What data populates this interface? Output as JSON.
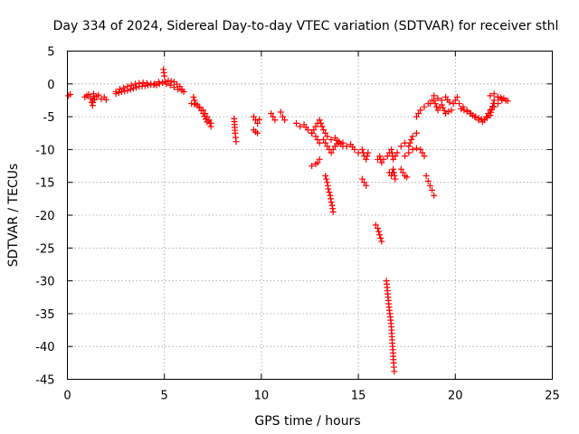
{
  "chart_data": {
    "type": "scatter",
    "title": "Day 334 of 2024, Sidereal Day-to-day VTEC variation (SDTVAR) for receiver sthl",
    "xlabel": "GPS time / hours",
    "ylabel": "SDTVAR / TECUs",
    "xlim": [
      0,
      25
    ],
    "ylim": [
      -45,
      5
    ],
    "x_ticks": [
      0,
      5,
      10,
      15,
      20,
      25
    ],
    "y_ticks": [
      5,
      0,
      -5,
      -10,
      -15,
      -20,
      -25,
      -30,
      -35,
      -40,
      -45
    ],
    "grid": true,
    "marker": "plus",
    "color": "#ff0000",
    "series": [
      {
        "name": "sthl",
        "segments": [
          {
            "x": [
              0.05,
              0.15
            ],
            "y": [
              -1.8,
              -1.6
            ]
          },
          {
            "x": [
              0.9,
              1.0,
              1.1,
              1.2,
              1.25,
              1.3,
              1.35,
              1.4,
              1.5,
              1.6
            ],
            "y": [
              -2.0,
              -1.8,
              -1.6,
              -2.2,
              -2.8,
              -3.3,
              -1.5,
              -2.4,
              -1.9,
              -1.7
            ]
          },
          {
            "x": [
              1.75,
              1.9,
              2.0
            ],
            "y": [
              -2.3,
              -2.0,
              -2.4
            ]
          },
          {
            "x": [
              2.5,
              2.7,
              2.9,
              3.1,
              3.3,
              3.5,
              3.7,
              3.9,
              4.1,
              4.3,
              4.5,
              4.7,
              4.9,
              5.1,
              5.3,
              5.5,
              5.7,
              5.9
            ],
            "y": [
              -1.2,
              -0.8,
              -0.6,
              -0.4,
              -0.2,
              0.0,
              0.1,
              0.2,
              0.1,
              0.0,
              0.0,
              0.3,
              0.2,
              0.0,
              -0.2,
              -0.5,
              -0.8,
              -1.0
            ]
          },
          {
            "x": [
              2.5,
              2.8,
              3.1,
              3.4,
              3.7,
              4.0,
              4.3,
              4.6,
              4.9,
              5.2,
              5.5,
              5.8,
              6.0
            ],
            "y": [
              -1.5,
              -1.2,
              -1.0,
              -0.7,
              -0.4,
              -0.3,
              -0.1,
              -0.2,
              0.2,
              0.5,
              0.3,
              -0.4,
              -1.2
            ]
          },
          {
            "x": [
              4.95,
              5.0
            ],
            "y": [
              2.2,
              1.2
            ]
          },
          {
            "x": [
              6.5,
              6.6,
              6.8,
              7.0,
              7.1,
              7.2,
              7.3,
              7.4
            ],
            "y": [
              -2.0,
              -3.0,
              -3.5,
              -4.0,
              -4.5,
              -5.0,
              -5.5,
              -6.5
            ]
          },
          {
            "x": [
              6.4,
              6.7,
              7.0,
              7.2,
              7.4
            ],
            "y": [
              -3.0,
              -3.2,
              -4.5,
              -5.8,
              -6.0
            ]
          },
          {
            "x": [
              8.6,
              8.65,
              8.7
            ],
            "y": [
              -5.3,
              -7.5,
              -8.8
            ]
          },
          {
            "x": [
              9.6,
              9.7,
              9.8,
              9.9
            ],
            "y": [
              -5.0,
              -5.5,
              -6.0,
              -5.4
            ]
          },
          {
            "x": [
              9.6,
              9.7,
              9.8
            ],
            "y": [
              -7.0,
              -7.3,
              -7.5
            ]
          },
          {
            "x": [
              10.5,
              10.6,
              10.7
            ],
            "y": [
              -4.5,
              -5.0,
              -5.5
            ]
          },
          {
            "x": [
              11.0,
              11.1,
              11.2
            ],
            "y": [
              -4.3,
              -5.0,
              -5.5
            ]
          },
          {
            "x": [
              11.8,
              12.0,
              12.2,
              12.4,
              12.6,
              12.8,
              13.0,
              13.2,
              13.4,
              13.6,
              13.8,
              14.0
            ],
            "y": [
              -6.0,
              -6.5,
              -6.2,
              -7.0,
              -7.5,
              -6.5,
              -5.5,
              -7.0,
              -8.0,
              -8.5,
              -8.2,
              -9.0
            ]
          },
          {
            "x": [
              12.6,
              12.8,
              13.0,
              13.2,
              13.4,
              13.6,
              13.8,
              14.0,
              14.2
            ],
            "y": [
              -7.5,
              -8.0,
              -9.0,
              -8.5,
              -9.5,
              -10.5,
              -9.5,
              -8.8,
              -9.5
            ]
          },
          {
            "x": [
              12.6,
              12.8,
              12.9,
              13.0
            ],
            "y": [
              -12.5,
              -12.2,
              -12.0,
              -11.5
            ]
          },
          {
            "x": [
              13.3,
              13.4,
              13.45,
              13.5,
              13.55,
              13.6,
              13.65,
              13.7
            ],
            "y": [
              -14.0,
              -15.0,
              -16.0,
              -16.5,
              -17.0,
              -18.0,
              -18.5,
              -19.5
            ]
          },
          {
            "x": [
              14.2,
              14.4,
              14.6,
              14.8,
              15.0
            ],
            "y": [
              -9.0,
              -9.5,
              -9.2,
              -10.0,
              -10.5
            ]
          },
          {
            "x": [
              15.2,
              15.3,
              15.4,
              15.5
            ],
            "y": [
              -10.0,
              -11.0,
              -11.5,
              -10.5
            ]
          },
          {
            "x": [
              15.2,
              15.3,
              15.4
            ],
            "y": [
              -14.5,
              -15.0,
              -15.5
            ]
          },
          {
            "x": [
              15.9,
              16.0,
              16.05,
              16.1,
              16.15,
              16.2
            ],
            "y": [
              -21.5,
              -22.0,
              -22.5,
              -23.0,
              -23.5,
              -24.0
            ]
          },
          {
            "x": [
              16.0,
              16.1,
              16.2,
              16.3,
              16.5,
              16.6,
              16.7,
              16.8,
              16.9,
              17.0
            ],
            "y": [
              -11.5,
              -11.0,
              -12.0,
              -11.5,
              -11.0,
              -10.5,
              -10.0,
              -11.5,
              -11.0,
              -10.5
            ]
          },
          {
            "x": [
              16.6,
              16.7,
              16.8,
              16.9
            ],
            "y": [
              -13.5,
              -14.0,
              -13.0,
              -14.5
            ]
          },
          {
            "x": [
              16.45,
              16.5,
              16.55,
              16.6,
              16.65,
              16.7,
              16.72,
              16.75,
              16.78,
              16.8,
              16.82,
              16.85
            ],
            "y": [
              -30.0,
              -31.5,
              -33.0,
              -34.5,
              -35.5,
              -37.0,
              -38.0,
              -39.5,
              -40.5,
              -41.5,
              -42.5,
              -43.8
            ]
          },
          {
            "x": [
              17.2,
              17.3,
              17.4,
              17.5
            ],
            "y": [
              -13.0,
              -13.5,
              -14.0,
              -14.2
            ]
          },
          {
            "x": [
              17.2,
              17.4,
              17.6,
              17.8,
              18.0
            ],
            "y": [
              -9.5,
              -9.0,
              -9.5,
              -8.0,
              -7.5
            ]
          },
          {
            "x": [
              17.4,
              17.6,
              17.8,
              18.0,
              18.2,
              18.4
            ],
            "y": [
              -11.0,
              -10.5,
              -10.0,
              -9.8,
              -10.0,
              -11.0
            ]
          },
          {
            "x": [
              18.0,
              18.2,
              18.4,
              18.6,
              18.8
            ],
            "y": [
              -5.0,
              -4.0,
              -3.5,
              -3.0,
              -2.5
            ]
          },
          {
            "x": [
              18.5,
              18.6,
              18.7,
              18.8,
              18.9
            ],
            "y": [
              -14.0,
              -14.8,
              -15.5,
              -16.2,
              -17.0
            ]
          },
          {
            "x": [
              18.9,
              19.1,
              19.3,
              19.5,
              19.7,
              19.9,
              20.1
            ],
            "y": [
              -1.8,
              -2.2,
              -2.5,
              -2.0,
              -2.8,
              -3.0,
              -2.0
            ]
          },
          {
            "x": [
              18.7,
              18.9,
              19.1,
              19.3,
              19.5,
              19.8
            ],
            "y": [
              -3.0,
              -2.5,
              -4.0,
              -3.2,
              -4.5,
              -4.0
            ]
          },
          {
            "x": [
              20.2,
              20.4,
              20.6,
              20.8,
              21.0,
              21.2,
              21.4,
              21.6,
              21.8,
              22.0,
              22.2,
              22.4
            ],
            "y": [
              -3.0,
              -3.5,
              -4.0,
              -4.5,
              -5.0,
              -5.5,
              -5.8,
              -5.0,
              -4.0,
              -3.5,
              -3.0,
              -2.5
            ]
          },
          {
            "x": [
              20.3,
              20.6,
              20.9,
              21.2,
              21.5,
              21.8,
              22.0,
              22.2,
              22.5
            ],
            "y": [
              -3.8,
              -4.2,
              -4.8,
              -5.2,
              -5.5,
              -4.8,
              -2.5,
              -2.0,
              -2.2
            ]
          },
          {
            "x": [
              21.8,
              22.0,
              22.2,
              22.4,
              22.6,
              22.7
            ],
            "y": [
              -1.8,
              -1.5,
              -2.0,
              -2.3,
              -2.5,
              -2.6
            ]
          }
        ]
      }
    ]
  }
}
